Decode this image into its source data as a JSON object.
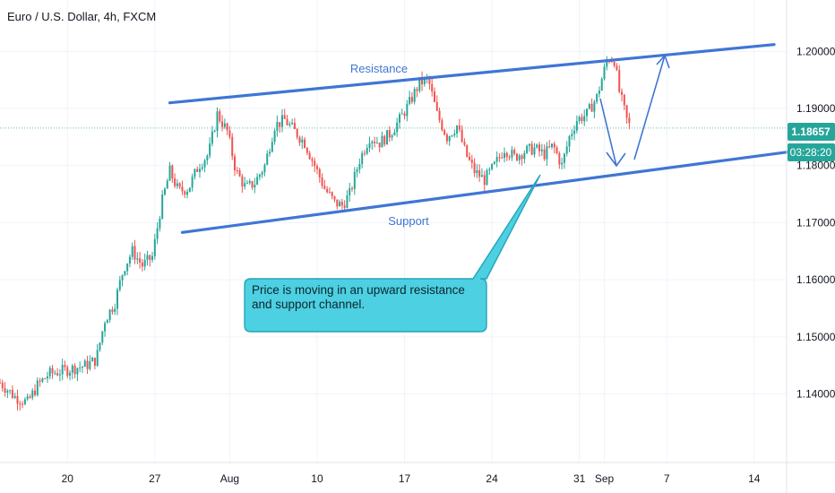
{
  "header": {
    "symbol_title": "Euro / U.S. Dollar, 4h, FXCM"
  },
  "price_axis": {
    "ticks": [
      {
        "value": 1.2,
        "label": "1.20000"
      },
      {
        "value": 1.19,
        "label": "1.19000"
      },
      {
        "value": 1.18,
        "label": "1.18000"
      },
      {
        "value": 1.17,
        "label": "1.17000"
      },
      {
        "value": 1.16,
        "label": "1.16000"
      },
      {
        "value": 1.15,
        "label": "1.15000"
      },
      {
        "value": 1.14,
        "label": "1.14000"
      }
    ],
    "current_price_label": "1.18657",
    "countdown_label": "03:28:20"
  },
  "time_axis": {
    "ticks": [
      {
        "day": 20,
        "label": "20"
      },
      {
        "day": 27,
        "label": "27"
      },
      {
        "day": 33,
        "label": "Aug"
      },
      {
        "day": 40,
        "label": "10"
      },
      {
        "day": 47,
        "label": "17"
      },
      {
        "day": 54,
        "label": "24"
      },
      {
        "day": 61,
        "label": "31"
      },
      {
        "day": 63,
        "label": "Sep"
      },
      {
        "day": 68,
        "label": "7"
      },
      {
        "day": 75,
        "label": "14"
      }
    ]
  },
  "annotations": {
    "resistance_label": "Resistance",
    "support_label": "Support",
    "callout_text": "Price is moving in an upward resistance and support channel."
  },
  "colors": {
    "up": "#26a69a",
    "down": "#ef5350",
    "trendline": "#3f76d4",
    "callout_fill": "#4dd0e1",
    "callout_stroke": "#26a3b9",
    "price_tag": "#26a69a",
    "grid": "#f0f3fa",
    "axis_text": "#131722"
  },
  "chart_data": {
    "type": "candlestick",
    "timeframe": "4h",
    "ylim": [
      1.128,
      1.209
    ],
    "xlim": [
      14.6,
      77.6
    ],
    "current_price": 1.18657,
    "close_path": [
      [
        14.6,
        1.142
      ],
      [
        15.8,
        1.1395
      ],
      [
        16.8,
        1.1385
      ],
      [
        17.6,
        1.1415
      ],
      [
        18.5,
        1.1435
      ],
      [
        19.5,
        1.144
      ],
      [
        20.5,
        1.1445
      ],
      [
        21.5,
        1.145
      ],
      [
        22.3,
        1.146
      ],
      [
        23.0,
        1.153
      ],
      [
        23.8,
        1.156
      ],
      [
        24.5,
        1.162
      ],
      [
        25.2,
        1.165
      ],
      [
        26.0,
        1.1625
      ],
      [
        26.8,
        1.164
      ],
      [
        27.5,
        1.173
      ],
      [
        28.2,
        1.179
      ],
      [
        28.9,
        1.1755
      ],
      [
        29.7,
        1.176
      ],
      [
        30.5,
        1.18
      ],
      [
        31.3,
        1.182
      ],
      [
        32.0,
        1.189
      ],
      [
        32.8,
        1.186
      ],
      [
        33.5,
        1.179
      ],
      [
        34.3,
        1.176
      ],
      [
        35.0,
        1.177
      ],
      [
        35.8,
        1.18
      ],
      [
        36.6,
        1.187
      ],
      [
        37.4,
        1.188
      ],
      [
        38.2,
        1.186
      ],
      [
        39.0,
        1.184
      ],
      [
        39.8,
        1.18
      ],
      [
        40.6,
        1.176
      ],
      [
        41.4,
        1.1735
      ],
      [
        42.0,
        1.173
      ],
      [
        42.6,
        1.175
      ],
      [
        43.4,
        1.181
      ],
      [
        44.2,
        1.185
      ],
      [
        45.0,
        1.184
      ],
      [
        45.8,
        1.1855
      ],
      [
        46.6,
        1.188
      ],
      [
        47.4,
        1.191
      ],
      [
        48.2,
        1.1945
      ],
      [
        48.9,
        1.195
      ],
      [
        49.6,
        1.189
      ],
      [
        50.4,
        1.185
      ],
      [
        51.2,
        1.187
      ],
      [
        51.9,
        1.182
      ],
      [
        52.6,
        1.179
      ],
      [
        53.4,
        1.1775
      ],
      [
        54.2,
        1.18
      ],
      [
        55.0,
        1.183
      ],
      [
        55.8,
        1.1815
      ],
      [
        56.6,
        1.1825
      ],
      [
        57.4,
        1.183
      ],
      [
        58.2,
        1.182
      ],
      [
        58.9,
        1.1835
      ],
      [
        59.6,
        1.18
      ],
      [
        60.2,
        1.185
      ],
      [
        60.8,
        1.188
      ],
      [
        61.6,
        1.189
      ],
      [
        62.4,
        1.192
      ],
      [
        62.9,
        1.196
      ],
      [
        63.3,
        1.199
      ],
      [
        63.8,
        1.1985
      ],
      [
        64.2,
        1.193
      ],
      [
        64.8,
        1.188
      ],
      [
        65.1,
        1.1866
      ]
    ],
    "channel": {
      "resistance": {
        "from": [
          28.2,
          1.191
        ],
        "to": [
          76.6,
          1.2012
        ]
      },
      "support": {
        "from": [
          29.2,
          1.1683
        ],
        "to": [
          79.5,
          1.1829
        ]
      }
    }
  }
}
